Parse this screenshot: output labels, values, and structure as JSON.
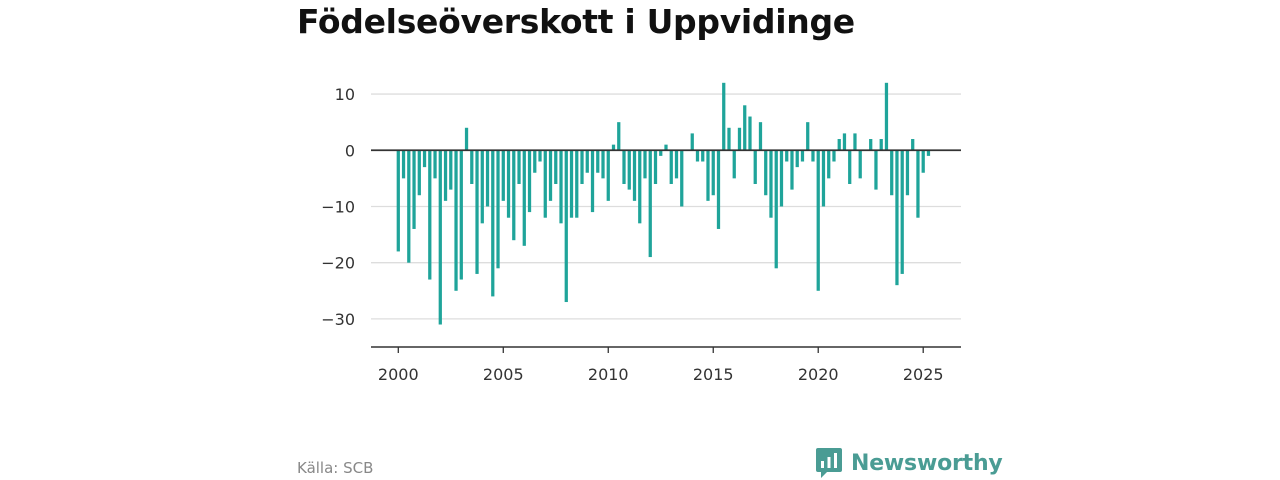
{
  "title": "Födelseöverskott i Uppvidinge",
  "source": "Källa: SCB",
  "brand": "Newsworthy",
  "colors": {
    "bar": "#1fa49a",
    "brand": "#4a9c94",
    "grid": "#dddddd",
    "axis": "#333333"
  },
  "chart_data": {
    "type": "bar",
    "title": "Födelseöverskott i Uppvidinge",
    "xlabel": "",
    "ylabel": "",
    "x_ticks": [
      "2000",
      "2005",
      "2010",
      "2015",
      "2020",
      "2025"
    ],
    "y_ticks": [
      "10",
      "0",
      "−10",
      "−20",
      "−30"
    ],
    "y_tick_values": [
      10,
      0,
      -10,
      -20,
      -30
    ],
    "ylim": [
      -35,
      12.5
    ],
    "xlim": [
      1998.7,
      2026.8
    ],
    "grid": true,
    "start": {
      "year": 2000,
      "quarter": 1
    },
    "values": [
      -18,
      -5,
      -20,
      -14,
      -8,
      -3,
      -23,
      -5,
      -31,
      -9,
      -7,
      -25,
      -23,
      4,
      -6,
      -22,
      -13,
      -10,
      -26,
      -21,
      -9,
      -12,
      -16,
      -6,
      -17,
      -11,
      -4,
      -2,
      -12,
      -9,
      -6,
      -13,
      -27,
      -12,
      -12,
      -6,
      -4,
      -11,
      -4,
      -5,
      -9,
      1,
      5,
      -6,
      -7,
      -9,
      -13,
      -5,
      -19,
      -6,
      -1,
      1,
      -6,
      -5,
      -10,
      0,
      3,
      -2,
      -2,
      -9,
      -8,
      -14,
      12,
      4,
      -5,
      4,
      8,
      6,
      -6,
      5,
      -8,
      -12,
      -21,
      -10,
      -2,
      -7,
      -3,
      -2,
      5,
      -2,
      -25,
      -10,
      -5,
      -2,
      2,
      3,
      -6,
      3,
      -5,
      0,
      2,
      -7,
      2,
      12,
      -8,
      -24,
      -22,
      -8,
      2,
      -12,
      -4,
      -1
    ]
  }
}
